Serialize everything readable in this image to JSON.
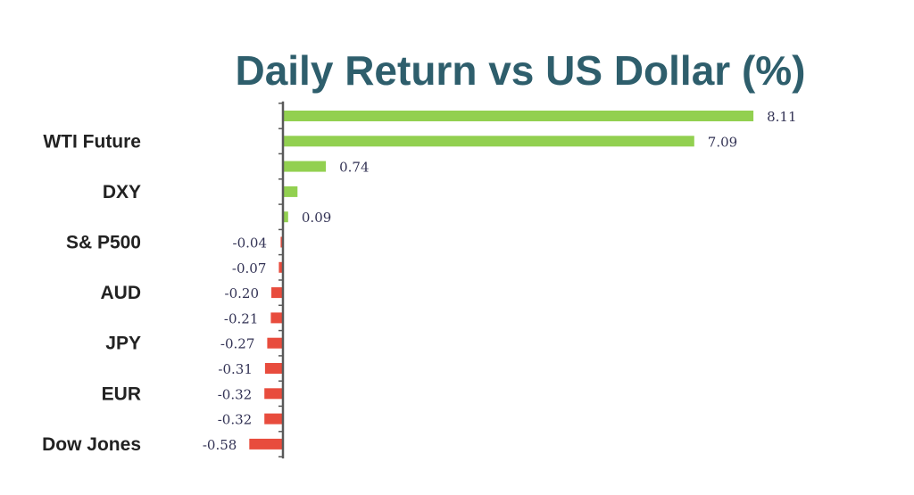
{
  "chart_data": {
    "type": "bar",
    "orientation": "horizontal",
    "title": "Daily Return vs US Dollar (%)",
    "xlabel": "",
    "ylabel": "",
    "categories": [
      "",
      "WTI Future",
      "",
      "DXY",
      "",
      "S& P500",
      "",
      "AUD",
      "",
      "JPY",
      "",
      "EUR",
      "",
      "Dow Jones"
    ],
    "values": [
      8.11,
      7.09,
      0.74,
      0.25,
      0.09,
      -0.04,
      -0.07,
      -0.2,
      -0.21,
      -0.27,
      -0.31,
      -0.32,
      -0.32,
      -0.58
    ],
    "value_labels": [
      "8.11",
      "7.09",
      "0.74",
      "",
      "0.09",
      "-0.04",
      "-0.07",
      "-0.20",
      "-0.21",
      "-0.27",
      "-0.31",
      "-0.32",
      "-0.32",
      "-0.58"
    ],
    "xlim": [
      -0.6,
      8.2
    ],
    "grid": false,
    "legend": "none",
    "colors": {
      "positive": "#92d050",
      "negative": "#e84c3d",
      "axis": "#595959",
      "title": "#2e5e6c"
    }
  }
}
